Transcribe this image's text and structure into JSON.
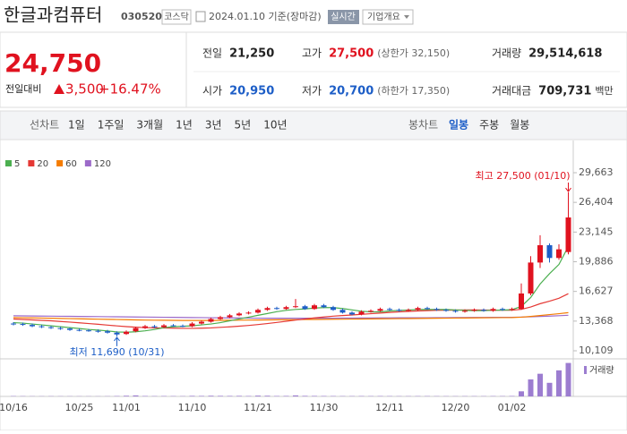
{
  "header": {
    "title": "한글과컴퓨터",
    "code": "030520",
    "market": "코스닥",
    "date": "2024.01.10 기준(장마감)",
    "realtime": "실시간",
    "overview": "기업개요"
  },
  "price": {
    "current": "24,750",
    "change_label": "전일대비",
    "change": "3,500",
    "rate": "+16.47%"
  },
  "stats": [
    {
      "label": "전일",
      "value": "21,250"
    },
    {
      "label": "고가",
      "value": "27,500",
      "note": "(상한가 32,150)",
      "color": "#e0121f"
    },
    {
      "label": "거래량",
      "value": "29,514,618"
    },
    {
      "label": "시가",
      "value": "20,950",
      "color": "#1d5ec7"
    },
    {
      "label": "저가",
      "value": "20,700",
      "note": "(하한가 17,350)",
      "color": "#1d5ec7"
    },
    {
      "label": "거래대금",
      "value": "709,731",
      "unit": "백만"
    }
  ],
  "tabs": {
    "line_label": "선차트",
    "line_periods": [
      "1일",
      "1주일",
      "3개월",
      "1년",
      "3년",
      "5년",
      "10년"
    ],
    "candle_label": "봉차트",
    "candle_periods": [
      "일봉",
      "주봉",
      "월봉"
    ]
  },
  "chart_data": {
    "type": "candlestick",
    "up_color": "#e0121f",
    "down_color": "#1d5ec7",
    "categories": [
      "10/16",
      null,
      null,
      null,
      null,
      null,
      null,
      "10/25",
      null,
      null,
      null,
      null,
      "11/01",
      null,
      null,
      null,
      null,
      null,
      null,
      "11/10",
      null,
      null,
      null,
      null,
      null,
      null,
      "11/21",
      null,
      null,
      null,
      null,
      null,
      null,
      "11/30",
      null,
      null,
      null,
      null,
      null,
      null,
      "12/11",
      null,
      null,
      null,
      null,
      null,
      null,
      "12/20",
      null,
      null,
      null,
      null,
      null,
      "01/02",
      null,
      null,
      null,
      null,
      null,
      null
    ],
    "open": [
      13100,
      13050,
      12950,
      12800,
      12700,
      12600,
      12550,
      12400,
      12350,
      12300,
      12250,
      12100,
      11950,
      12250,
      12600,
      12800,
      12700,
      12900,
      12850,
      12800,
      13100,
      13300,
      13600,
      13800,
      14000,
      14200,
      14300,
      14600,
      14800,
      14700,
      14900,
      15000,
      14700,
      15100,
      14900,
      14600,
      14300,
      14100,
      14400,
      14500,
      14700,
      14600,
      14500,
      14600,
      14800,
      14700,
      14600,
      14500,
      14400,
      14500,
      14600,
      14500,
      14700,
      14600,
      14700,
      16400,
      19800,
      21700,
      20300,
      20950
    ],
    "high": [
      13250,
      13200,
      13100,
      12950,
      12850,
      12750,
      12650,
      12550,
      12500,
      12450,
      12400,
      12250,
      12350,
      12750,
      12950,
      12950,
      13050,
      13050,
      13000,
      13250,
      13450,
      13750,
      13950,
      14150,
      14350,
      14450,
      14750,
      14950,
      14950,
      15050,
      15800,
      15150,
      15250,
      15250,
      15050,
      14750,
      14450,
      14550,
      14650,
      14850,
      14850,
      14750,
      14750,
      14950,
      14950,
      14850,
      14750,
      14650,
      14650,
      14750,
      14750,
      14850,
      14850,
      14850,
      17500,
      20500,
      22800,
      21900,
      21800,
      27500
    ],
    "low": [
      12900,
      12850,
      12700,
      12600,
      12500,
      12400,
      12300,
      12250,
      12200,
      12100,
      12000,
      11690,
      11850,
      12150,
      12500,
      12600,
      12600,
      12750,
      12700,
      12700,
      13000,
      13200,
      13500,
      13700,
      13900,
      14100,
      14200,
      14500,
      14600,
      14600,
      14800,
      14600,
      14600,
      14800,
      14500,
      14200,
      14000,
      14000,
      14300,
      14400,
      14500,
      14400,
      14400,
      14500,
      14600,
      14500,
      14400,
      14300,
      14300,
      14400,
      14400,
      14400,
      14500,
      14500,
      14600,
      16200,
      19200,
      19800,
      20100,
      20700
    ],
    "close": [
      13050,
      12950,
      12800,
      12700,
      12600,
      12550,
      12400,
      12350,
      12300,
      12250,
      12100,
      11900,
      12200,
      12600,
      12800,
      12700,
      12900,
      12850,
      12800,
      13100,
      13300,
      13600,
      13800,
      14000,
      14200,
      14300,
      14600,
      14800,
      14700,
      14900,
      15000,
      14700,
      15100,
      14900,
      14600,
      14300,
      14100,
      14400,
      14500,
      14700,
      14600,
      14500,
      14600,
      14800,
      14700,
      14600,
      14500,
      14400,
      14500,
      14600,
      14500,
      14700,
      14600,
      14700,
      16400,
      19800,
      21700,
      20300,
      21250,
      24750
    ],
    "ylim": [
      10109,
      29663
    ],
    "yticks": [
      {
        "value": 29663,
        "label": "29,663"
      },
      {
        "value": 26404,
        "label": "26,404"
      },
      {
        "value": 23145,
        "label": "23,145"
      },
      {
        "value": 19886,
        "label": "19,886"
      },
      {
        "value": 16627,
        "label": "16,627"
      },
      {
        "value": 13368,
        "label": "13,368"
      },
      {
        "value": 10109,
        "label": "10,109"
      }
    ],
    "moving_averages": [
      {
        "name": "5",
        "color": "#4caf50",
        "values": [
          13200,
          13150,
          13050,
          12950,
          12850,
          12750,
          12650,
          12550,
          12450,
          12380,
          12290,
          12180,
          12150,
          12200,
          12300,
          12450,
          12650,
          12750,
          12800,
          12850,
          12950,
          13050,
          13200,
          13400,
          13600,
          13800,
          14000,
          14200,
          14400,
          14550,
          14650,
          14700,
          14800,
          14850,
          14850,
          14750,
          14600,
          14450,
          14380,
          14380,
          14480,
          14540,
          14580,
          14640,
          14640,
          14640,
          14640,
          14600,
          14540,
          14520,
          14520,
          14560,
          14580,
          14620,
          14980,
          15960,
          17440,
          18580,
          19590,
          21560
        ]
      },
      {
        "name": "20",
        "color": "#e53935",
        "values": [
          13600,
          13550,
          13500,
          13450,
          13400,
          13330,
          13260,
          13180,
          13100,
          13020,
          12930,
          12840,
          12760,
          12700,
          12660,
          12630,
          12610,
          12590,
          12570,
          12570,
          12590,
          12620,
          12680,
          12740,
          12810,
          12890,
          12990,
          13100,
          13220,
          13350,
          13480,
          13600,
          13720,
          13820,
          13910,
          13980,
          14040,
          14110,
          14180,
          14250,
          14320,
          14380,
          14430,
          14480,
          14520,
          14550,
          14570,
          14580,
          14590,
          14600,
          14580,
          14570,
          14560,
          14560,
          14660,
          14920,
          15280,
          15560,
          15880,
          16380
        ]
      },
      {
        "name": "60",
        "color": "#f57c00",
        "values": [
          13760,
          13740,
          13720,
          13700,
          13680,
          13660,
          13640,
          13620,
          13600,
          13580,
          13560,
          13540,
          13520,
          13500,
          13480,
          13470,
          13460,
          13450,
          13440,
          13440,
          13440,
          13440,
          13450,
          13460,
          13470,
          13480,
          13490,
          13500,
          13510,
          13520,
          13530,
          13540,
          13550,
          13560,
          13570,
          13580,
          13590,
          13600,
          13610,
          13620,
          13630,
          13640,
          13650,
          13660,
          13670,
          13680,
          13690,
          13700,
          13710,
          13720,
          13730,
          13740,
          13750,
          13760,
          13800,
          13880,
          13980,
          14080,
          14180,
          14300
        ]
      },
      {
        "name": "120",
        "color": "#9c6ac9",
        "values": [
          13950,
          13940,
          13930,
          13920,
          13910,
          13900,
          13890,
          13880,
          13870,
          13860,
          13850,
          13840,
          13830,
          13820,
          13810,
          13800,
          13790,
          13780,
          13770,
          13760,
          13750,
          13740,
          13730,
          13720,
          13710,
          13700,
          13690,
          13680,
          13680,
          13680,
          13680,
          13680,
          13680,
          13680,
          13690,
          13700,
          13700,
          13710,
          13710,
          13720,
          13720,
          13730,
          13730,
          13740,
          13740,
          13750,
          13750,
          13760,
          13760,
          13770,
          13770,
          13780,
          13780,
          13790,
          13810,
          13840,
          13880,
          13920,
          13960,
          14010
        ]
      }
    ],
    "volume": {
      "name": "거래량",
      "color": "#9c7dd0",
      "ylim": [
        0,
        30000000
      ],
      "values": [
        300000,
        250000,
        200000,
        180000,
        220000,
        200000,
        180000,
        170000,
        160000,
        150000,
        200000,
        350000,
        600000,
        900000,
        400000,
        300000,
        350000,
        300000,
        250000,
        500000,
        450000,
        600000,
        500000,
        450000,
        500000,
        400000,
        700000,
        600000,
        400000,
        450000,
        900000,
        500000,
        450000,
        400000,
        350000,
        300000,
        300000,
        350000,
        300000,
        350000,
        300000,
        250000,
        250000,
        300000,
        280000,
        250000,
        230000,
        220000,
        250000,
        260000,
        240000,
        300000,
        280000,
        400000,
        4500000,
        15000000,
        20000000,
        12000000,
        23000000,
        29514618
      ]
    },
    "annotations": {
      "high": "최고 27,500 (01/10)",
      "low": "최저 11,690 (10/31)"
    }
  }
}
